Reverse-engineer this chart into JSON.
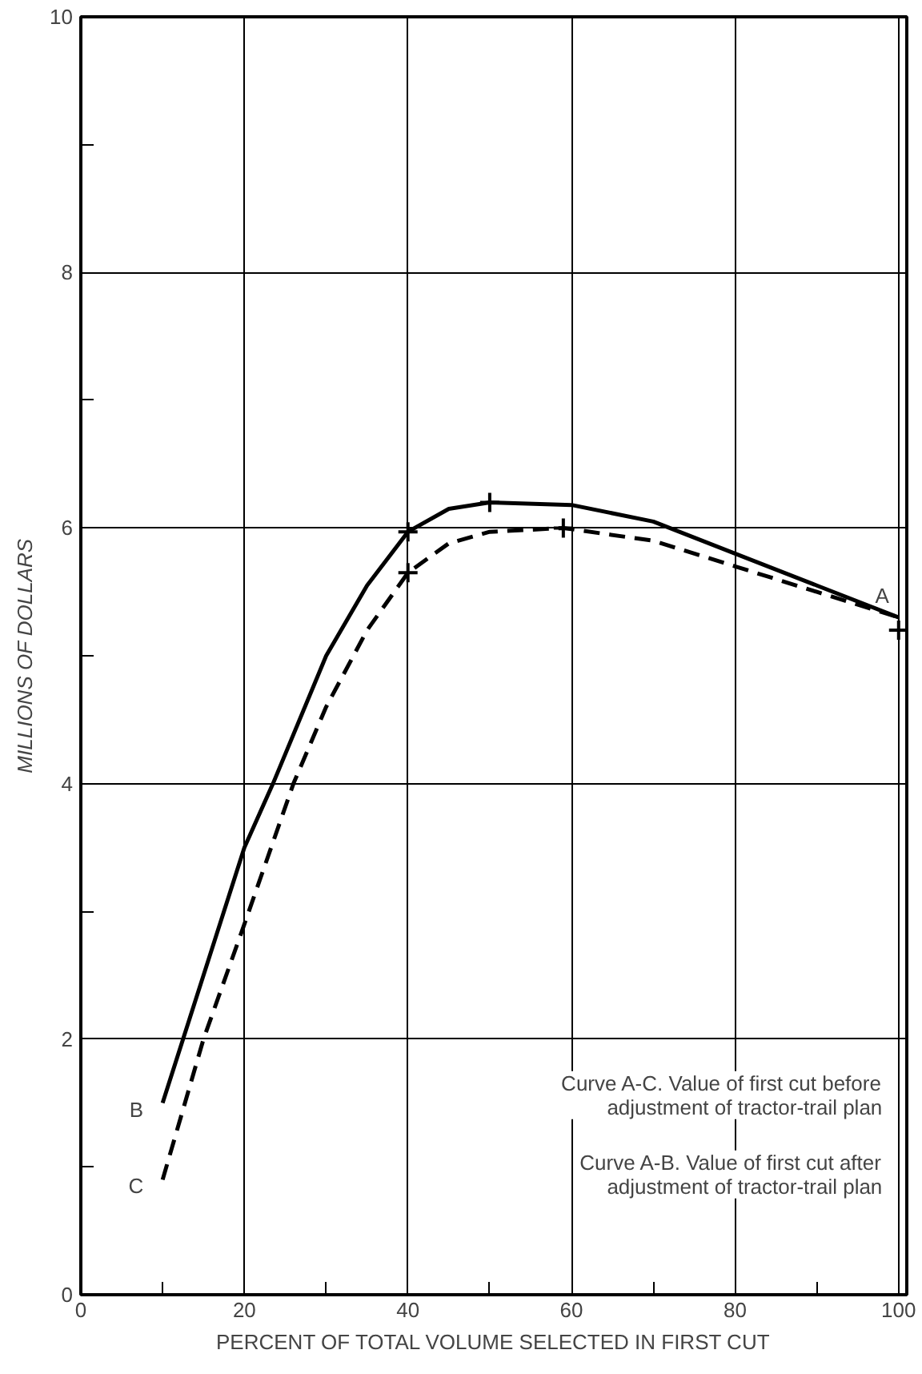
{
  "chart_data": {
    "type": "line",
    "xlabel": "PERCENT OF TOTAL VOLUME SELECTED IN FIRST CUT",
    "ylabel": "MILLIONS OF DOLLARS",
    "xlim": [
      0,
      101
    ],
    "ylim": [
      0,
      10
    ],
    "xticks": [
      0,
      {
        "value": 10,
        "label": null
      },
      20,
      {
        "value": 30,
        "label": null
      },
      40,
      {
        "value": 50,
        "label": null
      },
      60,
      {
        "value": 70,
        "label": null
      },
      80,
      {
        "value": 90,
        "label": null
      },
      100
    ],
    "yticks": [
      0,
      {
        "value": 1,
        "label": null
      },
      2,
      {
        "value": 3,
        "label": null
      },
      4,
      {
        "value": 5,
        "label": null
      },
      6,
      {
        "value": 7,
        "label": null
      },
      8,
      {
        "value": 9,
        "label": null
      },
      10
    ],
    "grid": true,
    "series": [
      {
        "name": "B",
        "color": "#000000",
        "line_style": "solid",
        "x": [
          10,
          12.5,
          20,
          23.5,
          30,
          35,
          40,
          45,
          50,
          60,
          70,
          80,
          90,
          100
        ],
        "values": [
          1.5,
          2.0,
          3.5,
          4.0,
          5.0,
          5.55,
          5.97,
          6.15,
          6.2,
          6.18,
          6.05,
          5.8,
          5.55,
          5.3
        ]
      },
      {
        "name": "C",
        "color": "#000000",
        "line_style": "dashed",
        "x": [
          10,
          15,
          20,
          26,
          30,
          35,
          40,
          45,
          50,
          59,
          70,
          80,
          90,
          100
        ],
        "values": [
          0.9,
          2.0,
          2.9,
          4.0,
          4.6,
          5.2,
          5.65,
          5.88,
          5.97,
          6.0,
          5.9,
          5.7,
          5.5,
          5.3
        ]
      },
      {
        "type": "scatter",
        "marker": "cross",
        "color": "#000000",
        "x": [
          40,
          50,
          40,
          59,
          100
        ],
        "values": [
          5.97,
          6.2,
          5.65,
          6.0,
          5.2
        ]
      }
    ],
    "annotations": [
      {
        "text": "A",
        "x": 100,
        "y": 5.3
      },
      "Curve A-C. Value of first cut before\nadjustment of tractor-trail plan",
      "Curve A-B. Value of first cut after\nadjustment of tractor-trail plan"
    ]
  }
}
